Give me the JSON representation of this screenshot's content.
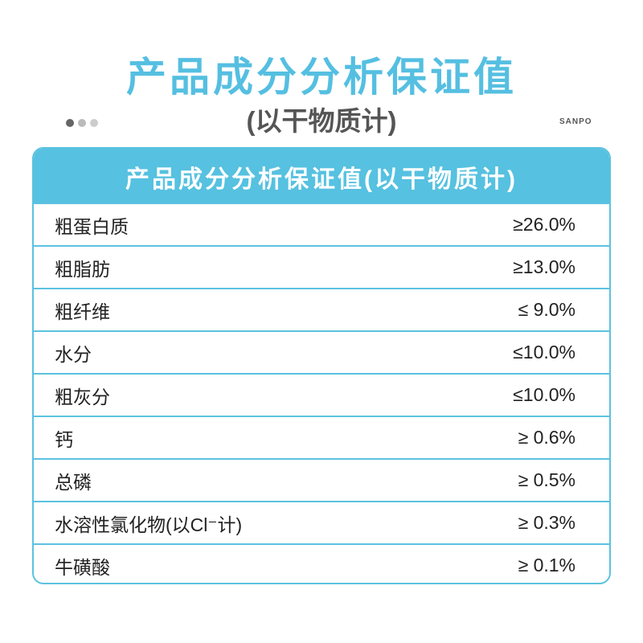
{
  "header": {
    "title": "产品成分分析保证值",
    "subtitle": "(以干物质计)",
    "brand": "SANPO",
    "carousel_dots": [
      {
        "color": "#666666",
        "active": true
      },
      {
        "color": "#bbbbbb",
        "active": false
      },
      {
        "color": "#cccccc",
        "active": false
      }
    ]
  },
  "table": {
    "heading": "产品成分分析保证值(以干物质计)",
    "rows": [
      {
        "name": "粗蛋白质",
        "value": "≥26.0%"
      },
      {
        "name": "粗脂肪",
        "value": "≥13.0%"
      },
      {
        "name": "粗纤维",
        "value": "≤ 9.0%"
      },
      {
        "name": "水分",
        "value": "≤10.0%"
      },
      {
        "name": "粗灰分",
        "value": "≤10.0%"
      },
      {
        "name": "钙",
        "value": "≥ 0.6%"
      },
      {
        "name": "总磷",
        "value": "≥ 0.5%"
      },
      {
        "name": "水溶性氯化物(以Cl⁻计)",
        "value": "≥ 0.3%"
      },
      {
        "name": "牛磺酸",
        "value": "≥ 0.1%"
      }
    ]
  },
  "colors": {
    "accent": "#56c1e0",
    "subtitle": "#555555"
  }
}
